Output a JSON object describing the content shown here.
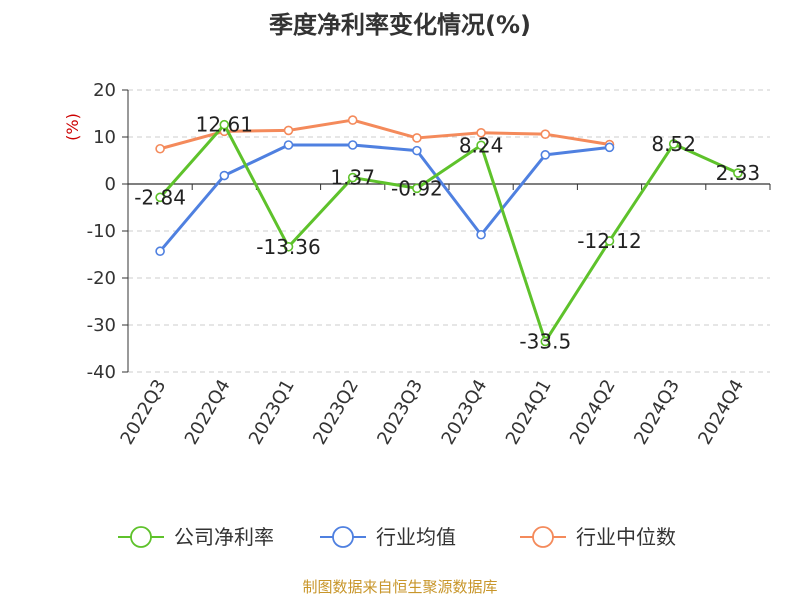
{
  "chart_data": {
    "type": "line",
    "title": "季度净利率变化情况(%)",
    "ylabel": "(%)",
    "ylim": [
      -40,
      20
    ],
    "yticks": [
      20,
      10,
      0,
      -10,
      -20,
      -30,
      -40
    ],
    "categories": [
      "2022Q3",
      "2022Q4",
      "2023Q1",
      "2023Q2",
      "2023Q3",
      "2023Q4",
      "2024Q1",
      "2024Q2",
      "2024Q3",
      "2024Q4"
    ],
    "series": [
      {
        "name": "公司净利率",
        "color": "#5ec22b",
        "values": [
          -2.84,
          12.61,
          -13.36,
          1.37,
          -0.92,
          8.24,
          -33.5,
          -12.12,
          8.52,
          2.33
        ],
        "labels": [
          "-2.84",
          "12.61",
          "-13.36",
          "1.37",
          "-0.92",
          "8.24",
          "-33.5",
          "-12.12",
          "8.52",
          "2.33"
        ]
      },
      {
        "name": "行业均值",
        "color": "#4f80e0",
        "values": [
          -14.3,
          1.8,
          8.3,
          8.3,
          7.1,
          -10.8,
          6.2,
          7.8,
          null,
          null
        ]
      },
      {
        "name": "行业中位数",
        "color": "#f48a5b",
        "values": [
          7.5,
          11.2,
          11.4,
          13.6,
          9.8,
          10.9,
          10.6,
          8.4,
          null,
          null
        ]
      }
    ],
    "grid": true,
    "legend_position": "bottom"
  },
  "footer": "制图数据来自恒生聚源数据库"
}
